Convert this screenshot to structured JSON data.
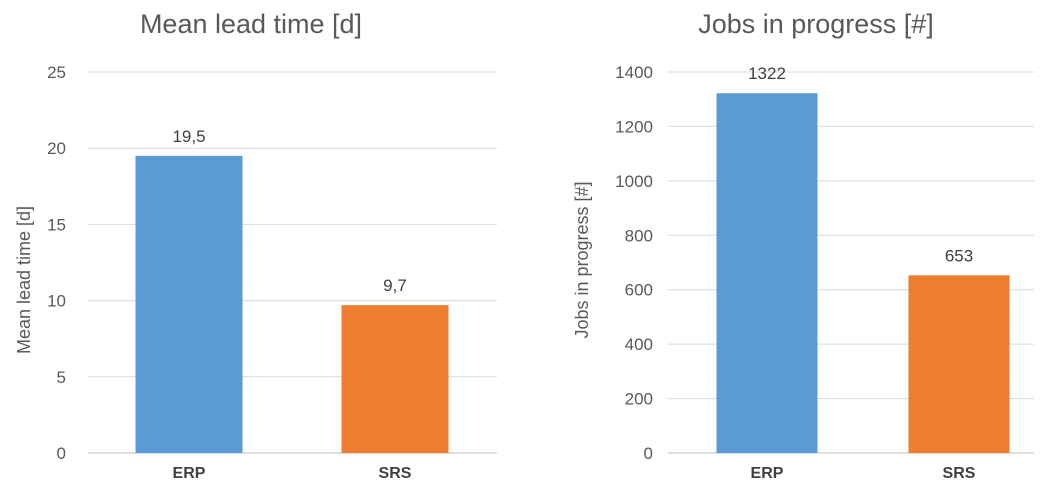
{
  "chart_data": [
    {
      "type": "bar",
      "title": "Mean lead time [d]",
      "ylabel": "Mean lead time [d]",
      "xlabel": "",
      "categories": [
        "ERP",
        "SRS"
      ],
      "values": [
        19.5,
        9.7
      ],
      "data_labels": [
        "19,5",
        "9,7"
      ],
      "colors": [
        "#5b9bd5",
        "#ed7d31"
      ],
      "ylim": [
        0,
        25
      ],
      "yticks": [
        0,
        5,
        10,
        15,
        20,
        25
      ],
      "ytick_labels": [
        "0",
        "5",
        "10",
        "15",
        "20",
        "25"
      ],
      "grid": true,
      "legend": "none"
    },
    {
      "type": "bar",
      "title": "Jobs in progress [#]",
      "ylabel": "Jobs in progress [#]",
      "xlabel": "",
      "categories": [
        "ERP",
        "SRS"
      ],
      "values": [
        1322,
        653
      ],
      "data_labels": [
        "1322",
        "653"
      ],
      "colors": [
        "#5b9bd5",
        "#ed7d31"
      ],
      "ylim": [
        0,
        1400
      ],
      "yticks": [
        0,
        200,
        400,
        600,
        800,
        1000,
        1200,
        1400
      ],
      "ytick_labels": [
        "0",
        "200",
        "400",
        "600",
        "800",
        "1000",
        "1200",
        "1400"
      ],
      "grid": true,
      "legend": "none"
    }
  ]
}
